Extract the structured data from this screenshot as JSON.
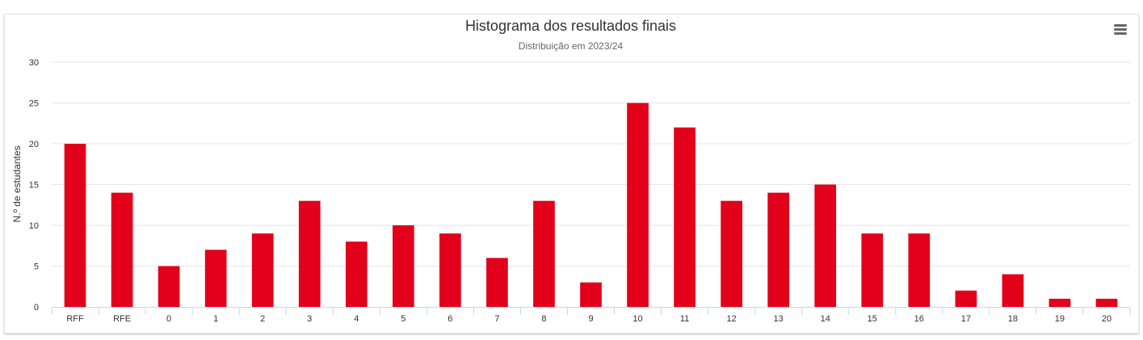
{
  "chart_data": {
    "type": "bar",
    "title": "Histograma dos resultados finais",
    "subtitle": "Distribuição em 2023/24",
    "ylabel": "N.º de estudantes",
    "xlabel": "",
    "ylim": [
      0,
      30
    ],
    "yticks": [
      0,
      5,
      10,
      15,
      20,
      25,
      30
    ],
    "categories": [
      "RFF",
      "RFE",
      "0",
      "1",
      "2",
      "3",
      "4",
      "5",
      "6",
      "7",
      "8",
      "9",
      "10",
      "11",
      "12",
      "13",
      "14",
      "15",
      "16",
      "17",
      "18",
      "19",
      "20"
    ],
    "values": [
      20,
      14,
      5,
      7,
      9,
      13,
      8,
      10,
      9,
      6,
      13,
      3,
      25,
      22,
      13,
      14,
      15,
      9,
      9,
      2,
      4,
      1,
      1
    ],
    "bar_color": "#e2001a",
    "grid": true,
    "legend": "none"
  },
  "menu_icon": "hamburger-menu-icon"
}
